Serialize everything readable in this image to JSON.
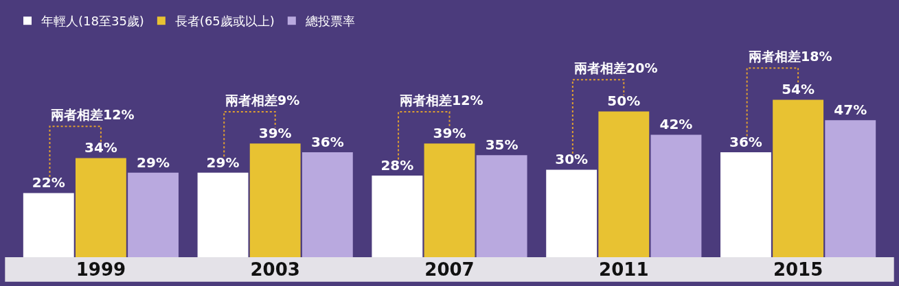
{
  "chart_data": {
    "type": "bar",
    "categories": [
      "1999",
      "2003",
      "2007",
      "2011",
      "2015"
    ],
    "series": [
      {
        "name": "年輕人(18至35歲)",
        "color": "#ffffff",
        "values": [
          22,
          29,
          28,
          30,
          36
        ],
        "value_labels": [
          "22%",
          "29%",
          "28%",
          "30%",
          "36%"
        ]
      },
      {
        "name": "長者(65歲或以上)",
        "color": "#e8c232",
        "values": [
          34,
          39,
          39,
          50,
          54
        ],
        "value_labels": [
          "34%",
          "39%",
          "39%",
          "50%",
          "54%"
        ]
      },
      {
        "name": "總投票率",
        "color": "#b9a9df",
        "values": [
          29,
          36,
          35,
          42,
          47
        ],
        "value_labels": [
          "29%",
          "36%",
          "35%",
          "42%",
          "47%"
        ]
      }
    ],
    "annotations": [
      "兩者相差12%",
      "兩者相差9%",
      "兩者相差12%",
      "兩者相差20%",
      "兩者相差18%"
    ],
    "legend": "top left",
    "tick_labels": "x"
  }
}
